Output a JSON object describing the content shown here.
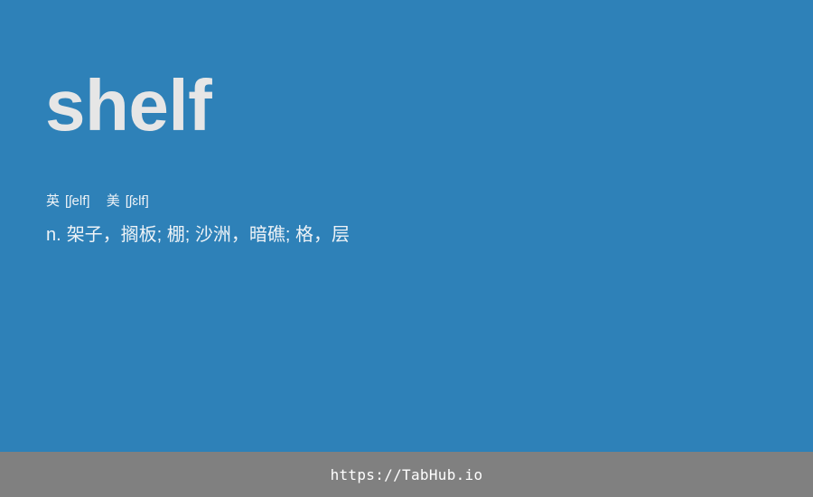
{
  "word": "shelf",
  "phonetics": {
    "uk_label": "英",
    "uk_ipa": "[ʃelf]",
    "us_label": "美",
    "us_ipa": "[ʃɛlf]"
  },
  "definition": {
    "pos": "n.",
    "meaning": "架子，搁板; 棚; 沙洲，暗礁; 格，层"
  },
  "footer": {
    "link_text": "https://TabHub.io"
  },
  "colors": {
    "background": "#2e81b8",
    "footer_background": "#808080",
    "word_text": "#e6e6e6",
    "body_text": "#eef3f7"
  }
}
